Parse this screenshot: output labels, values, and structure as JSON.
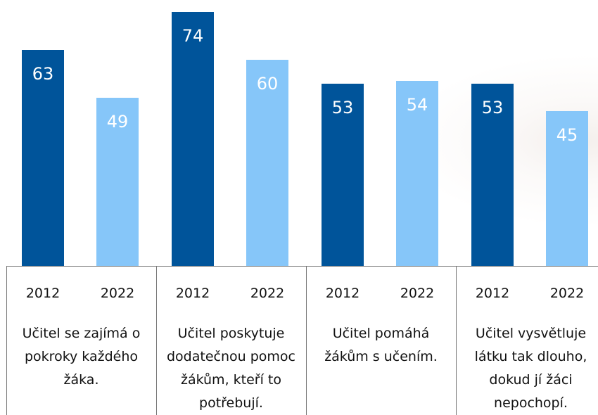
{
  "chart_data": {
    "type": "bar",
    "categories": [
      "Učitel se zajímá o pokroky každého žáka.",
      "Učitel poskytuje dodatečnou pomoc žákům, kteří to potřebují.",
      "Učitel pomáhá žákům s učením.",
      "Učitel vysvětluje látku tak dlouho, dokud jí žáci nepochopí."
    ],
    "series": [
      {
        "name": "2012",
        "color": "#00549a",
        "values": [
          63,
          74,
          53,
          53
        ]
      },
      {
        "name": "2022",
        "color": "#86c6f9",
        "values": [
          49,
          60,
          54,
          45
        ]
      }
    ]
  }
}
